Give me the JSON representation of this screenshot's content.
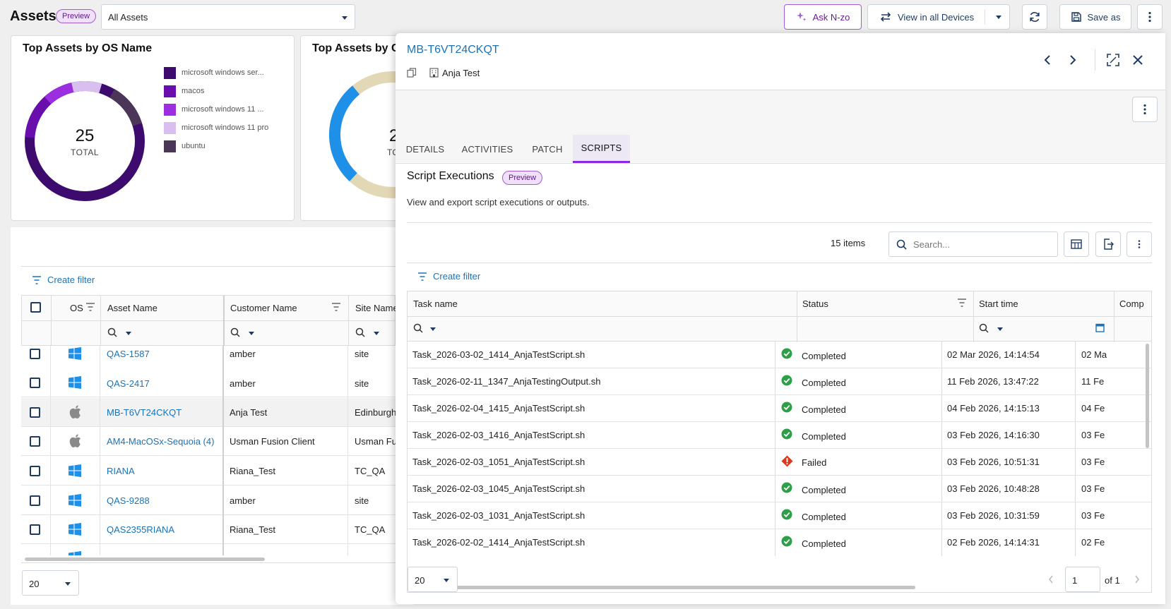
{
  "header": {
    "title": "Assets",
    "preview_badge": "Preview",
    "filter_select": "All Assets",
    "ask_button": "Ask N-zo",
    "view_button": "View in all Devices",
    "save_button": "Save as"
  },
  "cards": {
    "os_card": {
      "title": "Top Assets by OS Name",
      "total_value": "25",
      "total_label": "TOTAL",
      "legend": [
        {
          "label": "microsoft windows ser...",
          "color": "#3d0a6e"
        },
        {
          "label": "macos",
          "color": "#6a0dad"
        },
        {
          "label": "microsoft windows 11 ...",
          "color": "#9b2fe0"
        },
        {
          "label": "microsoft windows 11 pro",
          "color": "#d8bff0"
        },
        {
          "label": "ubuntu",
          "color": "#4b3658"
        }
      ]
    },
    "second_card": {
      "title_partial": "Top Assets by C",
      "total_partial": "2",
      "total_label_partial": "TC"
    }
  },
  "left_table": {
    "create_filter": "Create filter",
    "columns": [
      "OS",
      "Asset Name",
      "Customer Name",
      "Site Name"
    ],
    "rows": [
      {
        "os": "windows",
        "asset": "QAS-1587",
        "customer": "amber",
        "site": "site"
      },
      {
        "os": "windows",
        "asset": "QAS-2417",
        "customer": "amber",
        "site": "site"
      },
      {
        "os": "apple",
        "asset": "MB-T6VT24CKQT",
        "customer": "Anja Test",
        "site": "Edinburgh"
      },
      {
        "os": "apple",
        "asset": "AM4-MacOSx-Sequoia (4)",
        "customer": "Usman Fusion Client",
        "site": "Usman Fu"
      },
      {
        "os": "windows",
        "asset": "RIANA",
        "customer": "Riana_Test",
        "site": "TC_QA"
      },
      {
        "os": "windows",
        "asset": "QAS-9288",
        "customer": "amber",
        "site": "site"
      },
      {
        "os": "windows",
        "asset": "QAS2355RIANA",
        "customer": "Riana_Test",
        "site": "TC_QA"
      }
    ],
    "page_size": "20"
  },
  "panel": {
    "title": "MB-T6VT24CKQT",
    "customer": "Anja Test",
    "tabs": [
      "DETAILS",
      "ACTIVITIES",
      "PATCH",
      "SCRIPTS"
    ],
    "active_tab": "SCRIPTS",
    "section_title": "Script Executions",
    "section_badge": "Preview",
    "section_desc": "View and export script executions or outputs.",
    "items_count": "15 items",
    "search_placeholder": "Search...",
    "create_filter": "Create filter",
    "columns": [
      "Task name",
      "Status",
      "Start time",
      "Comp"
    ],
    "rows": [
      {
        "task": "Task_2026-03-02_1414_AnjaTestScript.sh",
        "status": "Completed",
        "start": "02 Mar 2026, 14:14:54",
        "comp": "02 Ma"
      },
      {
        "task": "Task_2026-02-11_1347_AnjaTestingOutput.sh",
        "status": "Completed",
        "start": "11 Feb 2026, 13:47:22",
        "comp": "11 Fe"
      },
      {
        "task": "Task_2026-02-04_1415_AnjaTestScript.sh",
        "status": "Completed",
        "start": "04 Feb 2026, 14:15:13",
        "comp": "04 Fe"
      },
      {
        "task": "Task_2026-02-03_1416_AnjaTestScript.sh",
        "status": "Completed",
        "start": "03 Feb 2026, 14:16:30",
        "comp": "03 Fe"
      },
      {
        "task": "Task_2026-02-03_1051_AnjaTestScript.sh",
        "status": "Failed",
        "start": "03 Feb 2026, 10:51:31",
        "comp": "03 Fe"
      },
      {
        "task": "Task_2026-02-03_1045_AnjaTestScript.sh",
        "status": "Completed",
        "start": "03 Feb 2026, 10:48:28",
        "comp": "03 Fe"
      },
      {
        "task": "Task_2026-02-03_1031_AnjaTestScript.sh",
        "status": "Completed",
        "start": "03 Feb 2026, 10:31:59",
        "comp": "03 Fe"
      },
      {
        "task": "Task_2026-02-02_1414_AnjaTestScript.sh",
        "status": "Completed",
        "start": "02 Feb 2026, 14:14:31",
        "comp": "02 Fe"
      }
    ],
    "page_size": "20",
    "page_number": "1",
    "page_of": "of 1"
  },
  "colors": {
    "accent": "#8a2be2",
    "link": "#1a73b8",
    "success": "#2e9e49",
    "error": "#d93a1f"
  }
}
